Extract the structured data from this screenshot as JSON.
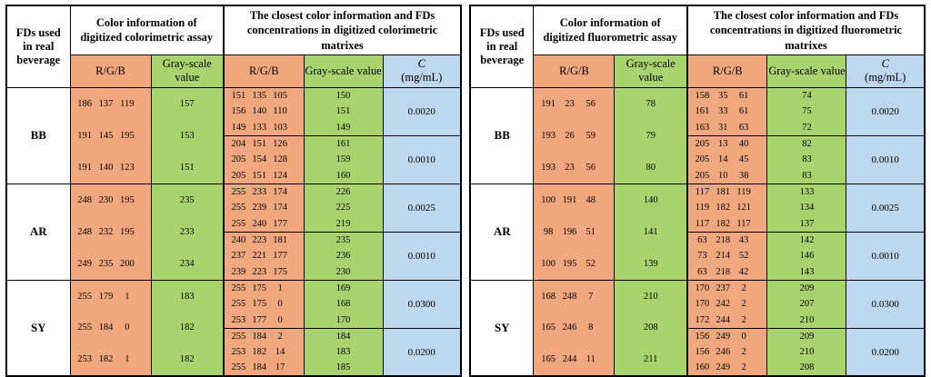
{
  "colors": {
    "rgb_column_bg": "#F2A87E",
    "grayscale_column_bg": "#A9D36F",
    "concentration_column_bg": "#BDD7EE",
    "border": "#000000",
    "page_bg": "#FFFFFF"
  },
  "tables": [
    {
      "id": "colorimetric",
      "header": {
        "col1": "FDs used in real beverage",
        "assay_title": "Color information of digitized colorimetric assay",
        "matrix_title": "The closest color information and FDs concentrations in digitized colorimetric matrixes",
        "rgb_label": "R/G/B",
        "gray_label": "Gray-scale value",
        "c_label": "C",
        "c_units": "(mg/mL)"
      },
      "blocks": [
        {
          "fd": "BB",
          "assay": {
            "rgb": [
              [
                186,
                137,
                119
              ],
              [
                191,
                145,
                195
              ],
              [
                191,
                140,
                123
              ]
            ],
            "gray": [
              157,
              153,
              151
            ]
          },
          "groups": [
            {
              "rgb": [
                [
                  151,
                  135,
                  105
                ],
                [
                  156,
                  140,
                  110
                ],
                [
                  149,
                  133,
                  103
                ]
              ],
              "gray": [
                150,
                151,
                149
              ],
              "c": "0.0020"
            },
            {
              "rgb": [
                [
                  204,
                  151,
                  126
                ],
                [
                  205,
                  154,
                  128
                ],
                [
                  205,
                  151,
                  124
                ]
              ],
              "gray": [
                161,
                159,
                160
              ],
              "c": "0.0010"
            }
          ]
        },
        {
          "fd": "AR",
          "assay": {
            "rgb": [
              [
                248,
                230,
                195
              ],
              [
                248,
                232,
                195
              ],
              [
                249,
                235,
                200
              ]
            ],
            "gray": [
              235,
              233,
              234
            ]
          },
          "groups": [
            {
              "rgb": [
                [
                  255,
                  233,
                  174
                ],
                [
                  255,
                  239,
                  174
                ],
                [
                  255,
                  240,
                  177
                ]
              ],
              "gray": [
                226,
                225,
                219
              ],
              "c": "0.0025"
            },
            {
              "rgb": [
                [
                  240,
                  223,
                  181
                ],
                [
                  237,
                  221,
                  177
                ],
                [
                  239,
                  223,
                  175
                ]
              ],
              "gray": [
                235,
                236,
                230
              ],
              "c": "0.0010"
            }
          ]
        },
        {
          "fd": "SY",
          "assay": {
            "rgb": [
              [
                255,
                179,
                1
              ],
              [
                255,
                184,
                0
              ],
              [
                253,
                182,
                1
              ]
            ],
            "gray": [
              183,
              182,
              182
            ]
          },
          "groups": [
            {
              "rgb": [
                [
                  255,
                  175,
                  1
                ],
                [
                  255,
                  175,
                  0
                ],
                [
                  253,
                  177,
                  0
                ]
              ],
              "gray": [
                169,
                168,
                170
              ],
              "c": "0.0300"
            },
            {
              "rgb": [
                [
                  255,
                  184,
                  2
                ],
                [
                  253,
                  182,
                  14
                ],
                [
                  255,
                  184,
                  17
                ]
              ],
              "gray": [
                184,
                183,
                185
              ],
              "c": "0.0200"
            }
          ]
        }
      ]
    },
    {
      "id": "fluorometric",
      "header": {
        "col1": "FDs used in real beverage",
        "assay_title": "Color information of digitized fluorometric assay",
        "matrix_title": "The closest color information and FDs concentrations in digitized fluorometric matrixes",
        "rgb_label": "R/G/B",
        "gray_label": "Gray-scale value",
        "c_label": "C",
        "c_units": "(mg/mL)"
      },
      "blocks": [
        {
          "fd": "BB",
          "assay": {
            "rgb": [
              [
                191,
                23,
                56
              ],
              [
                193,
                26,
                59
              ],
              [
                193,
                23,
                56
              ]
            ],
            "gray": [
              78,
              79,
              80
            ]
          },
          "groups": [
            {
              "rgb": [
                [
                  158,
                  35,
                  61
                ],
                [
                  161,
                  33,
                  61
                ],
                [
                  163,
                  31,
                  63
                ]
              ],
              "gray": [
                74,
                75,
                72
              ],
              "c": "0.0020"
            },
            {
              "rgb": [
                [
                  205,
                  13,
                  40
                ],
                [
                  205,
                  14,
                  45
                ],
                [
                  205,
                  10,
                  38
                ]
              ],
              "gray": [
                82,
                83,
                83
              ],
              "c": "0.0010"
            }
          ]
        },
        {
          "fd": "AR",
          "assay": {
            "rgb": [
              [
                100,
                191,
                48
              ],
              [
                98,
                196,
                51
              ],
              [
                100,
                195,
                52
              ]
            ],
            "gray": [
              140,
              141,
              139
            ]
          },
          "groups": [
            {
              "rgb": [
                [
                  117,
                  181,
                  119
                ],
                [
                  119,
                  182,
                  121
                ],
                [
                  117,
                  182,
                  117
                ]
              ],
              "gray": [
                133,
                134,
                137
              ],
              "c": "0.0025"
            },
            {
              "rgb": [
                [
                  63,
                  218,
                  43
                ],
                [
                  73,
                  214,
                  52
                ],
                [
                  63,
                  218,
                  42
                ]
              ],
              "gray": [
                142,
                146,
                143
              ],
              "c": "0.0010"
            }
          ]
        },
        {
          "fd": "SY",
          "assay": {
            "rgb": [
              [
                168,
                248,
                7
              ],
              [
                165,
                246,
                8
              ],
              [
                165,
                244,
                11
              ]
            ],
            "gray": [
              210,
              208,
              211
            ]
          },
          "groups": [
            {
              "rgb": [
                [
                  170,
                  237,
                  2
                ],
                [
                  170,
                  242,
                  2
                ],
                [
                  172,
                  244,
                  2
                ]
              ],
              "gray": [
                209,
                207,
                210
              ],
              "c": "0.0300"
            },
            {
              "rgb": [
                [
                  156,
                  249,
                  0
                ],
                [
                  156,
                  246,
                  2
                ],
                [
                  160,
                  249,
                  2
                ]
              ],
              "gray": [
                209,
                210,
                208
              ],
              "c": "0.0200"
            }
          ]
        }
      ]
    }
  ]
}
